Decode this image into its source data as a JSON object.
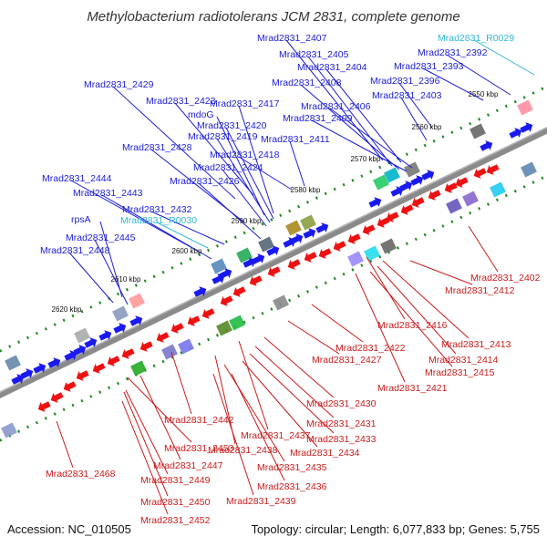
{
  "title": "Methylobacterium radiotolerans JCM 2831, complete genome",
  "footer": {
    "accession": "Accession: NC_010505",
    "summary": "Topology: circular; Length: 6,077,833 bp; Genes: 5,755"
  },
  "colors": {
    "plus_label": "#1b1bd6",
    "rna_label": "#2fb9d8",
    "minus_label": "#c81c1c",
    "plus_gene": "#1a1af0",
    "minus_gene": "#ee1111",
    "backbone": "#888888",
    "tick": "#1f8a1f"
  },
  "kbp_marks": [
    "2550 kbp",
    "2560 kbp",
    "2570 kbp",
    "2580 kbp",
    "2590 kbp",
    "2600 kbp",
    "2610 kbp",
    "2620 kbp"
  ],
  "labels_plus": [
    "Mrad2831_2407",
    "Mrad2831_2405",
    "Mrad2831_2392",
    "Mrad2831_2404",
    "Mrad2831_2393",
    "Mrad2831_2408",
    "Mrad2831_2396",
    "Mrad2831_2403",
    "Mrad2831_2429",
    "Mrad2831_2423",
    "Mrad2831_2417",
    "Mrad2831_2406",
    "mdoG",
    "Mrad2831_2409",
    "Mrad2831_2420",
    "Mrad2831_2419",
    "Mrad2831_2411",
    "Mrad2831_2428",
    "Mrad2831_2418",
    "Mrad2831_2424",
    "Mrad2831_2426",
    "Mrad2831_2444",
    "Mrad2831_2443",
    "Mrad2831_2432",
    "rpsA",
    "Mrad2831_2445",
    "Mrad2831_2448"
  ],
  "labels_rna": [
    "Mrad2831_R0029",
    "Mrad2831_R0030"
  ],
  "labels_minus": [
    "Mrad2831_2402",
    "Mrad2831_2412",
    "Mrad2831_2416",
    "Mrad2831_2413",
    "Mrad2831_2422",
    "Mrad2831_2414",
    "Mrad2831_2427",
    "Mrad2831_2415",
    "Mrad2831_2421",
    "Mrad2831_2430",
    "Mrad2831_2442",
    "Mrad2831_2431",
    "Mrad2831_2437",
    "Mrad2831_2433",
    "Mrad2831_2438",
    "Mrad2831_2434",
    "Mrad2831_2453",
    "Mrad2831_2435",
    "Mrad2831_2447",
    "Mrad2831_2468",
    "Mrad2831_2436",
    "Mrad2831_2449",
    "Mrad2831_2439",
    "Mrad2831_2450",
    "Mrad2831_2452"
  ]
}
